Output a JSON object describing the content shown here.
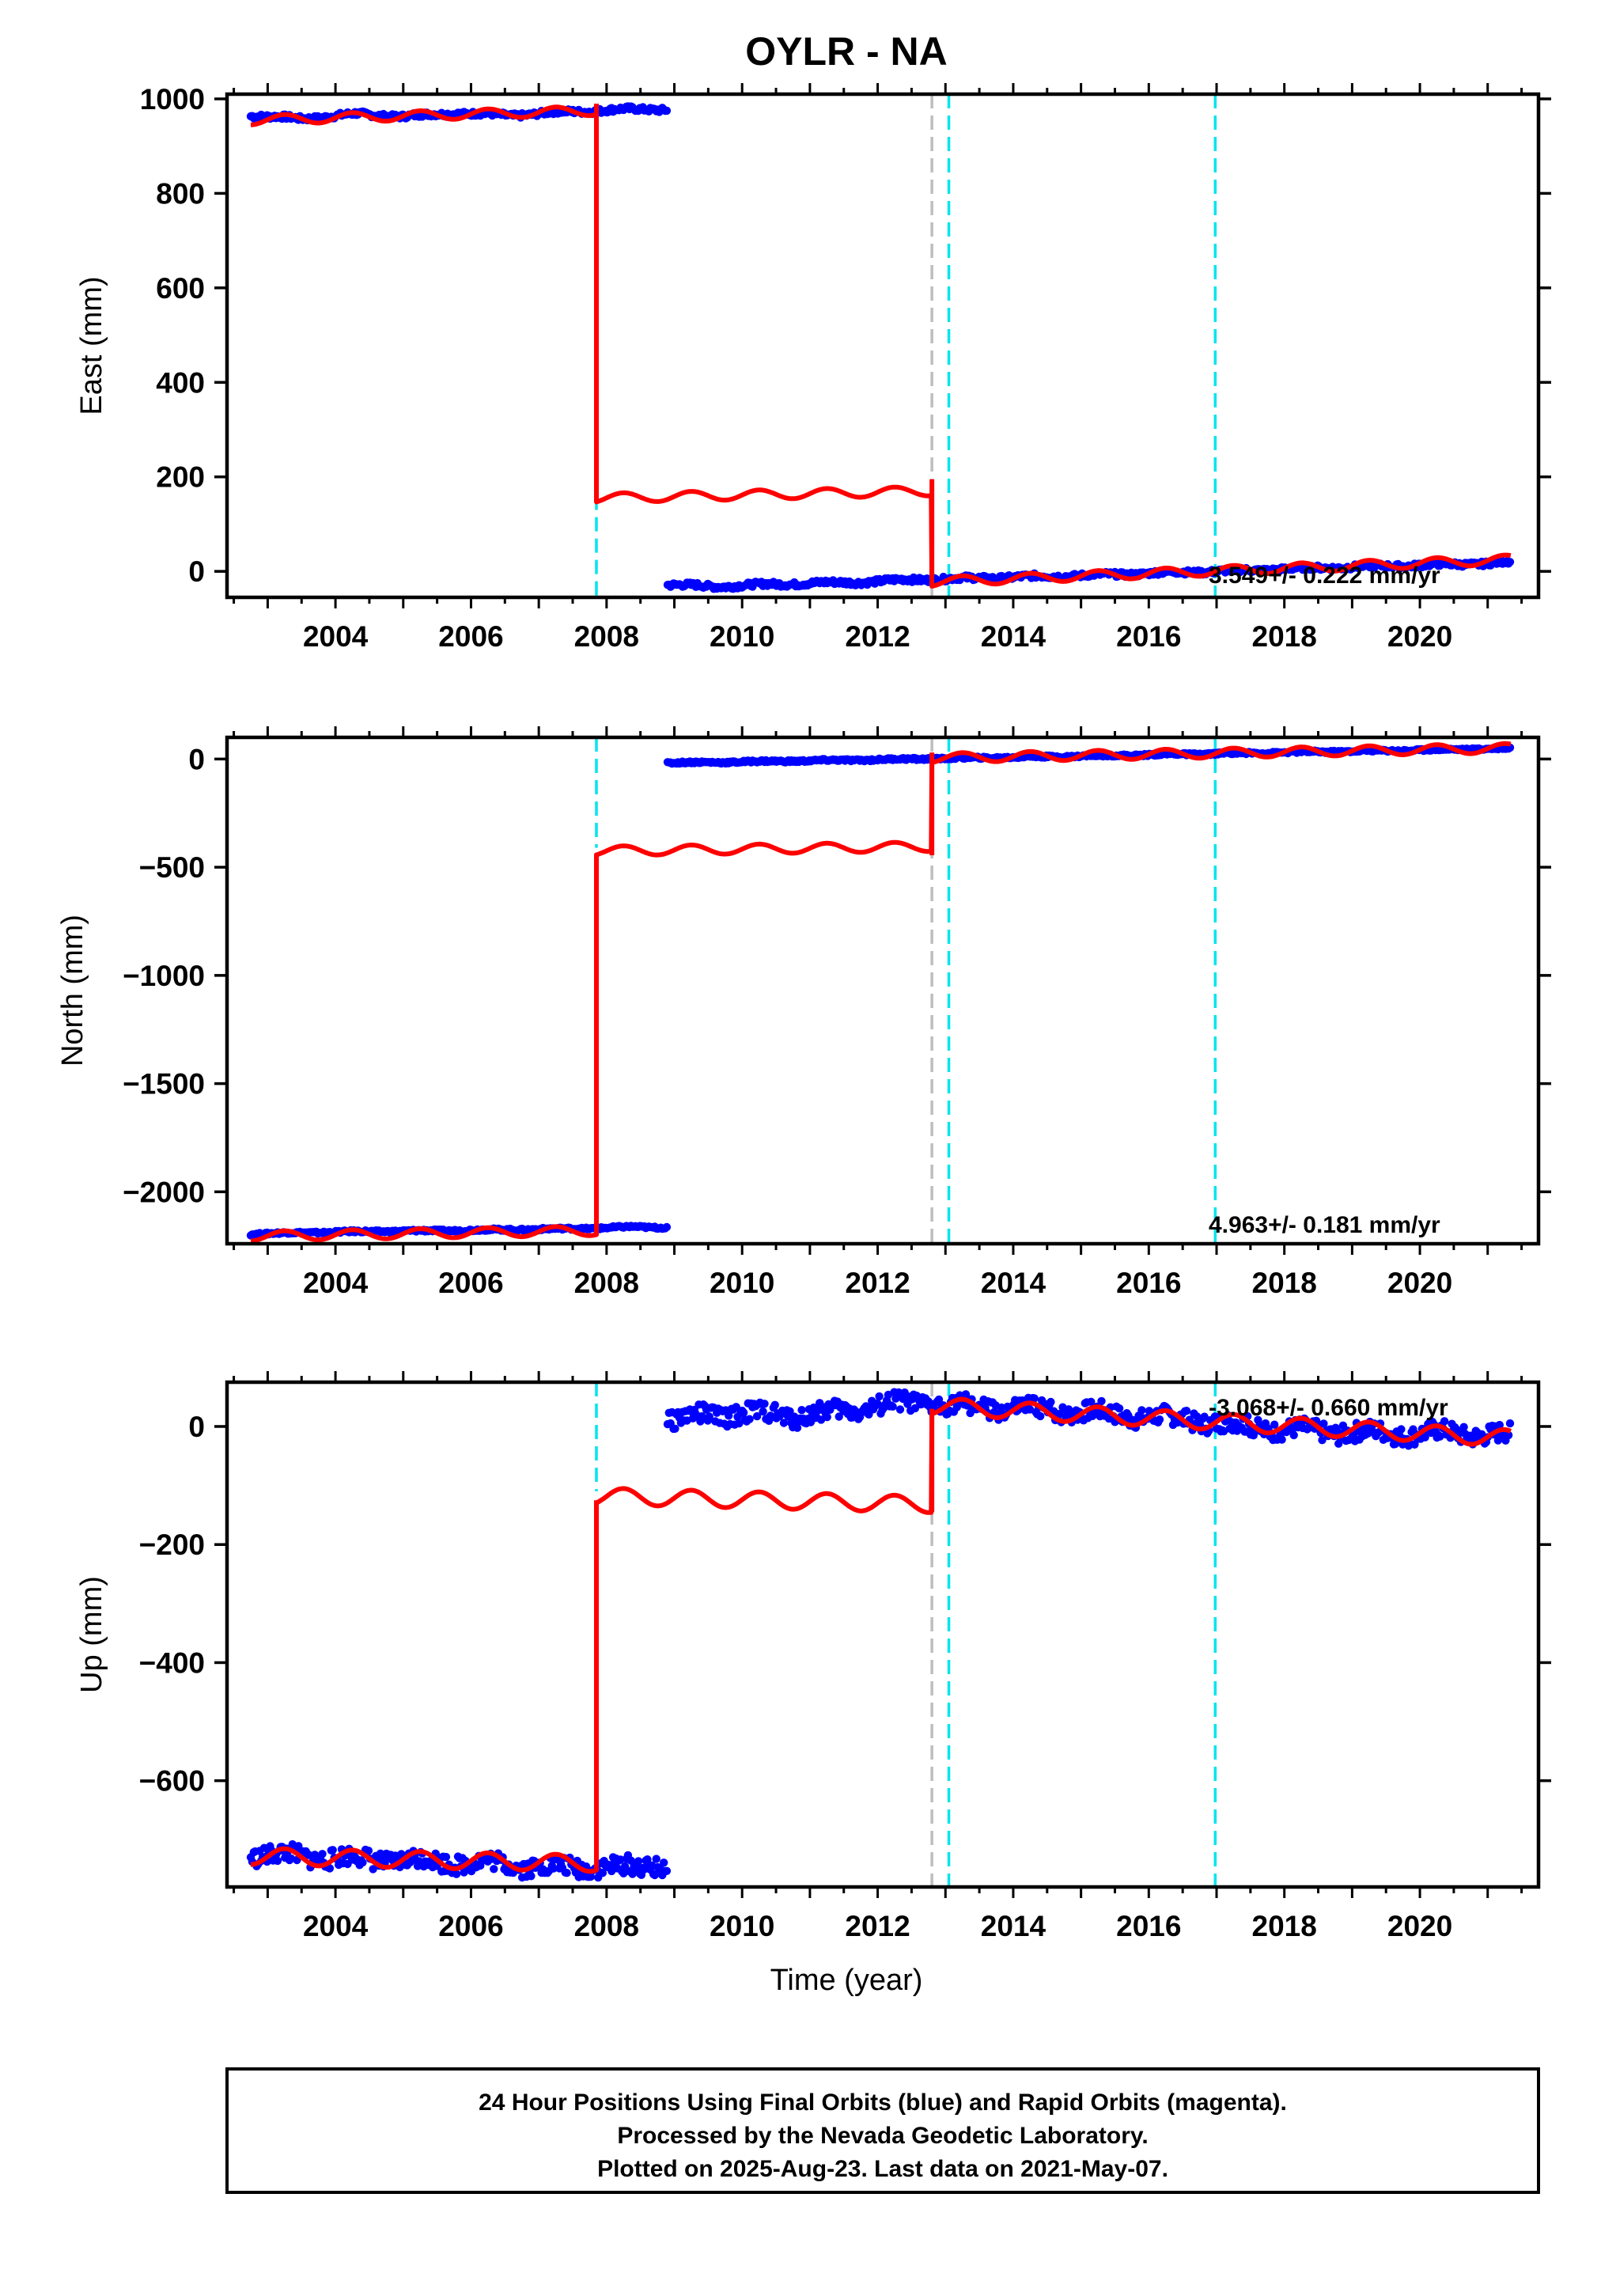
{
  "title": "OYLR - NA",
  "xlabel": "Time (year)",
  "footer": {
    "line1": "24 Hour Positions Using Final Orbits (blue) and Rapid Orbits (magenta).",
    "line2": "Processed by the Nevada Geodetic Laboratory.",
    "line3": "Plotted on 2025-Aug-23. Last data on 2021-May-07."
  },
  "colors": {
    "data": "#0000ff",
    "model": "#ff0000",
    "equipment_change": "#00e5ee",
    "event": "#bebebe"
  },
  "chart_data": [
    {
      "type": "scatter",
      "component": "east",
      "ylabel": "East (mm)",
      "xlim": [
        2002.4,
        2021.75
      ],
      "ylim": [
        -55,
        1010
      ],
      "x_ticks": [
        2004,
        2006,
        2008,
        2010,
        2012,
        2014,
        2016,
        2018,
        2020
      ],
      "y_ticks": [
        0,
        200,
        400,
        600,
        800,
        1000
      ],
      "rate_label": "3.549+/- 0.222 mm/yr",
      "vertical_lines": [
        {
          "x": 2007.85,
          "kind": "equipment_change",
          "y_range": [
            -55,
            160
          ]
        },
        {
          "x": 2012.8,
          "kind": "event"
        },
        {
          "x": 2013.05,
          "kind": "equipment_change"
        },
        {
          "x": 2016.98,
          "kind": "equipment_change"
        }
      ],
      "series": [
        {
          "kind": "data",
          "segments": [
            {
              "x": [
                2002.75,
                2003.5,
                2004.3,
                2005.0,
                2005.8,
                2006.6,
                2007.3,
                2007.85,
                2008.3,
                2008.9
              ],
              "y": [
                965,
                958,
                968,
                963,
                970,
                965,
                972,
                975,
                978,
                978
              ]
            },
            {
              "x": [
                2008.9,
                2009.6,
                2010.3,
                2011.0,
                2011.7,
                2012.4,
                2013.0,
                2013.8,
                2014.6,
                2015.4,
                2016.2,
                2017.0,
                2017.8,
                2018.6,
                2019.4,
                2020.2,
                2021.0,
                2021.35
              ],
              "y": [
                -28,
                -32,
                -28,
                -25,
                -23,
                -18,
                -16,
                -13,
                -10,
                -7,
                -3,
                0,
                4,
                8,
                11,
                14,
                17,
                20
              ]
            }
          ]
        },
        {
          "kind": "model",
          "seasonal_amp": 10,
          "segments": [
            {
              "x": [
                2002.75,
                2007.85
              ],
              "y": [
                955,
                975
              ]
            },
            {
              "x": [
                2007.85,
                2012.8
              ],
              "y": [
                155,
                170
              ]
            },
            {
              "x": [
                2012.8,
                2021.35
              ],
              "y": [
                -22,
                25
              ]
            }
          ],
          "jumps": [
            {
              "x": 2007.85,
              "from": 990,
              "to": 175
            },
            {
              "x": 2012.8,
              "from": 195,
              "to": -5
            }
          ]
        }
      ]
    },
    {
      "type": "scatter",
      "component": "north",
      "ylabel": "North (mm)",
      "xlim": [
        2002.4,
        2021.75
      ],
      "ylim": [
        -2240,
        100
      ],
      "x_ticks": [
        2004,
        2006,
        2008,
        2010,
        2012,
        2014,
        2016,
        2018,
        2020
      ],
      "y_ticks": [
        0,
        -500,
        -1000,
        -1500,
        -2000
      ],
      "rate_label": "4.963+/- 0.181 mm/yr",
      "vertical_lines": [
        {
          "x": 2007.85,
          "kind": "equipment_change",
          "y_range": [
            -410,
            100
          ]
        },
        {
          "x": 2012.8,
          "kind": "event"
        },
        {
          "x": 2013.05,
          "kind": "equipment_change"
        },
        {
          "x": 2016.98,
          "kind": "equipment_change"
        }
      ],
      "series": [
        {
          "kind": "data",
          "segments": [
            {
              "x": [
                2002.75,
                2003.6,
                2004.5,
                2005.4,
                2006.3,
                2007.2,
                2007.85,
                2008.4,
                2008.9
              ],
              "y": [
                -2195,
                -2188,
                -2183,
                -2180,
                -2176,
                -2172,
                -2168,
                -2162,
                -2165
              ]
            },
            {
              "x": [
                2008.9,
                2009.8,
                2010.7,
                2011.6,
                2012.5,
                2013.4,
                2014.3,
                2015.2,
                2016.1,
                2017.0,
                2017.9,
                2018.8,
                2019.7,
                2020.6,
                2021.35
              ],
              "y": [
                -18,
                -14,
                -9,
                -5,
                0,
                5,
                10,
                15,
                20,
                25,
                30,
                35,
                40,
                45,
                50
              ]
            }
          ]
        },
        {
          "kind": "model",
          "seasonal_amp": 22,
          "segments": [
            {
              "x": [
                2002.75,
                2007.85
              ],
              "y": [
                -2205,
                -2180
              ]
            },
            {
              "x": [
                2007.85,
                2012.8
              ],
              "y": [
                -425,
                -405
              ]
            },
            {
              "x": [
                2012.8,
                2021.35
              ],
              "y": [
                5,
                50
              ]
            }
          ],
          "jumps": [
            {
              "x": 2007.85,
              "from": -2150,
              "to": -455
            },
            {
              "x": 2012.8,
              "from": -445,
              "to": 30
            }
          ]
        }
      ]
    },
    {
      "type": "scatter",
      "component": "up",
      "ylabel": "Up (mm)",
      "xlim": [
        2002.4,
        2021.75
      ],
      "ylim": [
        -780,
        75
      ],
      "x_ticks": [
        2004,
        2006,
        2008,
        2010,
        2012,
        2014,
        2016,
        2018,
        2020
      ],
      "y_ticks": [
        0,
        -200,
        -400,
        -600
      ],
      "rate_label": "-3.068+/- 0.660 mm/yr",
      "vertical_lines": [
        {
          "x": 2007.85,
          "kind": "equipment_change",
          "y_range": [
            -110,
            75
          ]
        },
        {
          "x": 2012.8,
          "kind": "event"
        },
        {
          "x": 2013.05,
          "kind": "equipment_change"
        },
        {
          "x": 2016.98,
          "kind": "equipment_change"
        }
      ],
      "series": [
        {
          "kind": "data",
          "noise": 16,
          "segments": [
            {
              "x": [
                2002.75,
                2003.5,
                2004.3,
                2005.1,
                2005.9,
                2006.7,
                2007.3,
                2007.85,
                2008.4,
                2008.9
              ],
              "y": [
                -725,
                -728,
                -732,
                -735,
                -738,
                -742,
                -748,
                -745,
                -748,
                -740
              ]
            },
            {
              "x": [
                2008.9,
                2009.5,
                2010.1,
                2010.8,
                2011.4,
                2012.0,
                2012.6,
                2013.2,
                2013.8,
                2014.4,
                2015.0,
                2015.6,
                2016.2,
                2016.8,
                2017.4,
                2018.0,
                2018.6,
                2019.2,
                2019.8,
                2020.4,
                2021.0,
                2021.35
              ],
              "y": [
                10,
                20,
                22,
                18,
                25,
                35,
                40,
                35,
                30,
                28,
                25,
                20,
                15,
                10,
                0,
                -5,
                -8,
                -10,
                -12,
                -10,
                -13,
                -15
              ]
            }
          ]
        },
        {
          "kind": "model",
          "seasonal_amp": 14,
          "segments": [
            {
              "x": [
                2002.75,
                2007.85
              ],
              "y": [
                -728,
                -740
              ]
            },
            {
              "x": [
                2007.85,
                2012.8
              ],
              "y": [
                -118,
                -132
              ]
            },
            {
              "x": [
                2012.8,
                2021.35
              ],
              "y": [
                35,
                -20
              ]
            }
          ],
          "jumps": [
            {
              "x": 2007.85,
              "from": -745,
              "to": -125
            },
            {
              "x": 2012.8,
              "from": -145,
              "to": 30
            }
          ]
        }
      ]
    }
  ]
}
